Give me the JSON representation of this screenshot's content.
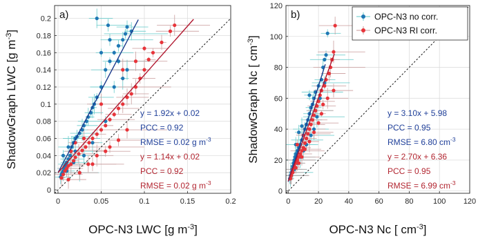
{
  "chart_data": [
    {
      "type": "scatter",
      "panel_label": "a)",
      "xlabel": "OPC-N3 LWC [g m^-3]",
      "ylabel": "ShadowGraph LWC [g m^-3]",
      "xlim": [
        -0.004,
        0.2
      ],
      "ylim": [
        -0.004,
        0.215
      ],
      "x_ticks": [
        0,
        0.05,
        0.1,
        0.15,
        0.2
      ],
      "x_tick_labels": [
        "0",
        "0.05",
        "0.1",
        "0.15",
        "0.2"
      ],
      "y_ticks": [
        0,
        0.02,
        0.04,
        0.06,
        0.08,
        0.1,
        0.12,
        0.14,
        0.16,
        0.18,
        0.2
      ],
      "y_tick_labels": [
        "0",
        "0.02",
        "0.04",
        "0.06",
        "0.08",
        "0.1",
        "0.12",
        "0.14",
        "0.16",
        "0.18",
        "0.2"
      ],
      "grid": true,
      "one_to_one_line": true,
      "series": [
        {
          "name": "OPC-N3 no corr.",
          "color": "#1f77b4",
          "errbar_color": "#5fc8c8",
          "points": [
            [
              0.003,
              0.015
            ],
            [
              0.004,
              0.018
            ],
            [
              0.005,
              0.02
            ],
            [
              0.006,
              0.022
            ],
            [
              0.007,
              0.025
            ],
            [
              0.008,
              0.028
            ],
            [
              0.009,
              0.03
            ],
            [
              0.01,
              0.032
            ],
            [
              0.012,
              0.036
            ],
            [
              0.014,
              0.04
            ],
            [
              0.015,
              0.045
            ],
            [
              0.016,
              0.05
            ],
            [
              0.018,
              0.055
            ],
            [
              0.02,
              0.06
            ],
            [
              0.022,
              0.062
            ],
            [
              0.025,
              0.066
            ],
            [
              0.028,
              0.07
            ],
            [
              0.03,
              0.075
            ],
            [
              0.033,
              0.08
            ],
            [
              0.035,
              0.085
            ],
            [
              0.038,
              0.09
            ],
            [
              0.04,
              0.096
            ],
            [
              0.042,
              0.1
            ],
            [
              0.045,
              0.108
            ],
            [
              0.05,
              0.12
            ],
            [
              0.055,
              0.14
            ],
            [
              0.06,
              0.15
            ],
            [
              0.065,
              0.16
            ],
            [
              0.07,
              0.168
            ],
            [
              0.075,
              0.175
            ],
            [
              0.078,
              0.182
            ],
            [
              0.08,
              0.19
            ],
            [
              0.045,
              0.2
            ],
            [
              0.06,
              0.175
            ],
            [
              0.05,
              0.16
            ],
            [
              0.07,
              0.15
            ],
            [
              0.085,
              0.185
            ],
            [
              0.012,
              0.05
            ],
            [
              0.02,
              0.045
            ],
            [
              0.03,
              0.04
            ],
            [
              0.018,
              0.032
            ],
            [
              0.01,
              0.022
            ],
            [
              0.006,
              0.04
            ],
            [
              0.025,
              0.02
            ],
            [
              0.04,
              0.055
            ],
            [
              0.055,
              0.08
            ],
            [
              0.065,
              0.12
            ],
            [
              0.075,
              0.13
            ],
            [
              0.08,
              0.14
            ],
            [
              0.058,
              0.192
            ]
          ]
        },
        {
          "name": "OPC-N3 RI corr.",
          "color": "#e8343a",
          "errbar_color": "#c89a9a",
          "points": [
            [
              0.004,
              0.014
            ],
            [
              0.006,
              0.018
            ],
            [
              0.008,
              0.022
            ],
            [
              0.01,
              0.025
            ],
            [
              0.012,
              0.028
            ],
            [
              0.015,
              0.03
            ],
            [
              0.018,
              0.034
            ],
            [
              0.02,
              0.038
            ],
            [
              0.024,
              0.042
            ],
            [
              0.028,
              0.046
            ],
            [
              0.032,
              0.05
            ],
            [
              0.036,
              0.055
            ],
            [
              0.04,
              0.06
            ],
            [
              0.045,
              0.065
            ],
            [
              0.05,
              0.07
            ],
            [
              0.055,
              0.075
            ],
            [
              0.06,
              0.082
            ],
            [
              0.065,
              0.088
            ],
            [
              0.07,
              0.095
            ],
            [
              0.075,
              0.1
            ],
            [
              0.08,
              0.108
            ],
            [
              0.085,
              0.112
            ],
            [
              0.09,
              0.12
            ],
            [
              0.095,
              0.13
            ],
            [
              0.1,
              0.14
            ],
            [
              0.105,
              0.152
            ],
            [
              0.11,
              0.16
            ],
            [
              0.12,
              0.172
            ],
            [
              0.13,
              0.185
            ],
            [
              0.135,
              0.192
            ],
            [
              0.02,
              0.055
            ],
            [
              0.03,
              0.06
            ],
            [
              0.025,
              0.02
            ],
            [
              0.035,
              0.03
            ],
            [
              0.045,
              0.04
            ],
            [
              0.06,
              0.05
            ],
            [
              0.015,
              0.045
            ],
            [
              0.05,
              0.1
            ],
            [
              0.075,
              0.14
            ],
            [
              0.09,
              0.15
            ],
            [
              0.1,
              0.165
            ],
            [
              0.04,
              0.03
            ],
            [
              0.055,
              0.045
            ],
            [
              0.012,
              0.012
            ],
            [
              0.07,
              0.058
            ],
            [
              0.08,
              0.07
            ]
          ]
        }
      ],
      "fit_lines": [
        {
          "series": "OPC-N3 no corr.",
          "slope": 1.92,
          "intercept": 0.02,
          "x_range": [
            0,
            0.093
          ]
        },
        {
          "series": "OPC-N3 RI corr.",
          "slope": 1.14,
          "intercept": 0.02,
          "x_range": [
            0,
            0.157
          ]
        }
      ],
      "annotations": [
        {
          "text": "y = 1.92x + 0.02",
          "color": "#1f3f99"
        },
        {
          "text": "PCC = 0.92",
          "color": "#1f3f99"
        },
        {
          "text": "RMSE = 0.02 g m^-3",
          "color": "#1f3f99"
        },
        {
          "text": "y = 1.14x + 0.02",
          "color": "#b22530"
        },
        {
          "text": "PCC = 0.92",
          "color": "#b22530"
        },
        {
          "text": "RMSE = 0.02 g m^-3",
          "color": "#b22530"
        }
      ]
    },
    {
      "type": "scatter",
      "panel_label": "b)",
      "xlabel": "OPC-N3 Nc [ cm^-3]",
      "ylabel": "ShadowGraph Nc [ cm^-3]",
      "xlim": [
        -1.5,
        120
      ],
      "ylim": [
        -1.5,
        120
      ],
      "x_ticks": [
        0,
        20,
        40,
        60,
        80,
        100,
        120
      ],
      "x_tick_labels": [
        "0",
        "20",
        "40",
        "60",
        "80",
        "100",
        "120"
      ],
      "y_ticks": [
        0,
        20,
        40,
        60,
        80,
        100,
        120
      ],
      "y_tick_labels": [
        "0",
        "20",
        "40",
        "60",
        "80",
        "100",
        "120"
      ],
      "grid": true,
      "one_to_one_line": true,
      "legend": {
        "position": "top-right"
      },
      "series": [
        {
          "name": "OPC-N3 no corr.",
          "color": "#1f77b4",
          "errbar_color": "#5fc8c8",
          "points": [
            [
              1,
              8
            ],
            [
              1.5,
              10
            ],
            [
              2,
              12
            ],
            [
              2.5,
              14
            ],
            [
              3,
              16
            ],
            [
              3.5,
              18
            ],
            [
              4,
              20
            ],
            [
              4.5,
              22
            ],
            [
              5,
              24
            ],
            [
              6,
              26
            ],
            [
              7,
              28
            ],
            [
              8,
              30
            ],
            [
              9,
              33
            ],
            [
              10,
              36
            ],
            [
              11,
              40
            ],
            [
              12,
              43
            ],
            [
              13,
              46
            ],
            [
              14,
              50
            ],
            [
              15,
              54
            ],
            [
              16,
              56
            ],
            [
              17,
              60
            ],
            [
              18,
              64
            ],
            [
              20,
              68
            ],
            [
              22,
              72
            ],
            [
              23,
              80
            ],
            [
              24,
              85
            ],
            [
              25,
              88
            ],
            [
              26,
              102
            ],
            [
              24,
              70
            ],
            [
              21,
              60
            ],
            [
              19,
              48
            ],
            [
              17,
              40
            ],
            [
              15,
              36
            ],
            [
              12,
              30
            ],
            [
              10,
              26
            ],
            [
              8,
              22
            ],
            [
              6,
              18
            ],
            [
              4,
              14
            ],
            [
              3,
              12
            ],
            [
              2,
              10
            ],
            [
              7,
              38
            ],
            [
              9,
              42
            ],
            [
              5,
              30
            ],
            [
              14,
              62
            ],
            [
              18,
              52
            ]
          ]
        },
        {
          "name": "OPC-N3 RI corr.",
          "color": "#e8343a",
          "errbar_color": "#c89a9a",
          "points": [
            [
              1.5,
              8
            ],
            [
              2,
              10
            ],
            [
              2.5,
              12
            ],
            [
              3,
              14
            ],
            [
              4,
              16
            ],
            [
              5,
              18
            ],
            [
              6,
              20
            ],
            [
              7,
              22
            ],
            [
              8,
              24
            ],
            [
              9,
              26
            ],
            [
              10,
              28
            ],
            [
              11,
              31
            ],
            [
              12,
              34
            ],
            [
              13,
              37
            ],
            [
              14,
              40
            ],
            [
              15,
              43
            ],
            [
              16,
              46
            ],
            [
              17,
              49
            ],
            [
              18,
              52
            ],
            [
              19,
              55
            ],
            [
              20,
              58
            ],
            [
              21,
              62
            ],
            [
              22,
              65
            ],
            [
              24,
              68
            ],
            [
              25,
              72
            ],
            [
              27,
              76
            ],
            [
              28,
              80
            ],
            [
              29,
              85
            ],
            [
              30,
              90
            ],
            [
              31,
              107
            ],
            [
              26,
              60
            ],
            [
              23,
              56
            ],
            [
              20,
              44
            ],
            [
              17,
              38
            ],
            [
              14,
              32
            ],
            [
              11,
              27
            ],
            [
              9,
              22
            ],
            [
              7,
              18
            ],
            [
              5,
              15
            ],
            [
              3,
              12
            ],
            [
              30,
              65
            ],
            [
              10,
              36
            ],
            [
              6,
              30
            ],
            [
              22,
              50
            ]
          ]
        }
      ],
      "fit_lines": [
        {
          "series": "OPC-N3 no corr.",
          "slope": 3.1,
          "intercept": 5.98,
          "x_range": [
            0,
            24.5
          ]
        },
        {
          "series": "OPC-N3 RI corr.",
          "slope": 2.7,
          "intercept": 6.36,
          "x_range": [
            0,
            30.5
          ]
        }
      ],
      "annotations": [
        {
          "text": "y = 3.10x + 5.98",
          "color": "#1f3f99"
        },
        {
          "text": "PCC = 0.95",
          "color": "#1f3f99"
        },
        {
          "text": "RMSE = 6.80 cm^-3",
          "color": "#1f3f99"
        },
        {
          "text": "y = 2.70x + 6.36",
          "color": "#b22530"
        },
        {
          "text": "PCC = 0.95",
          "color": "#b22530"
        },
        {
          "text": "RMSE = 6.99 cm^-3",
          "color": "#b22530"
        }
      ]
    }
  ]
}
